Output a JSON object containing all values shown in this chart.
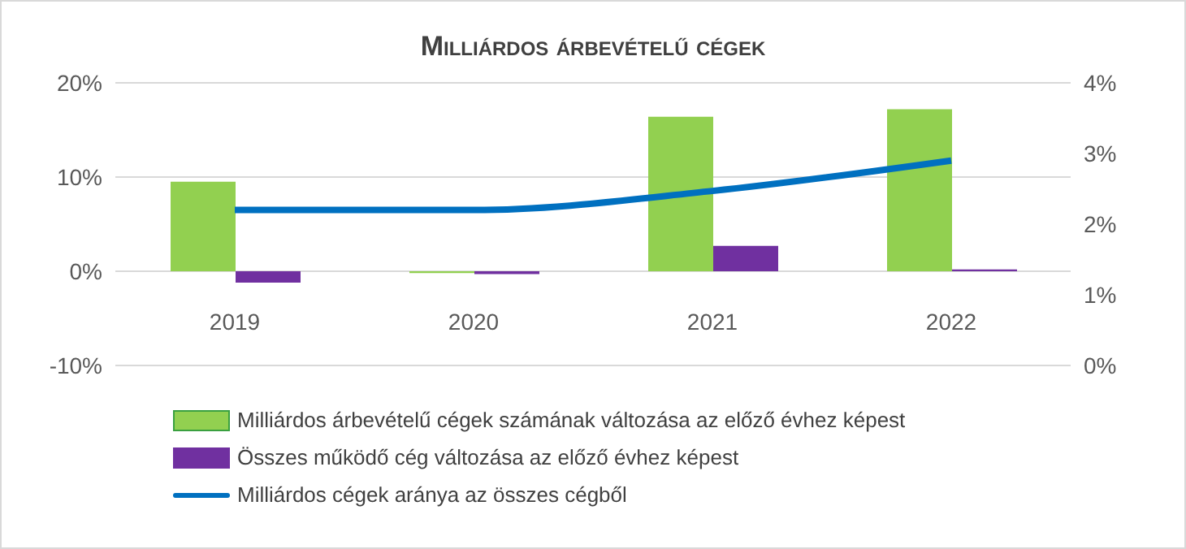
{
  "chart_data": {
    "type": "bar",
    "title": "Milliárdos árbevételű cégek",
    "categories": [
      "2019",
      "2020",
      "2021",
      "2022"
    ],
    "series": [
      {
        "name": "Milliárdos árbevételű cégek számának változása az előző évhez képest",
        "color": "#92d050",
        "values": [
          9.5,
          -0.2,
          16.4,
          17.2
        ]
      },
      {
        "name": "Összes működő cég változása az előző évhez képest",
        "color": "#7030a0",
        "values": [
          -1.2,
          -0.3,
          2.7,
          0.2
        ]
      },
      {
        "name": "Milliárdos cégek aránya az összes cégből",
        "type": "line",
        "axis": "y2",
        "color": "#0070c0",
        "values": [
          2.2,
          2.2,
          2.47,
          2.9
        ]
      }
    ],
    "ylim": [
      -10,
      20
    ],
    "yticks": [
      {
        "value": -10,
        "label": "-10%"
      },
      {
        "value": 0,
        "label": "0%"
      },
      {
        "value": 10,
        "label": "10%"
      },
      {
        "value": 20,
        "label": "20%"
      }
    ],
    "y2lim": [
      0,
      4
    ],
    "y2ticks": [
      {
        "value": 0,
        "label": "0%"
      },
      {
        "value": 1,
        "label": "1%"
      },
      {
        "value": 2,
        "label": "2%"
      },
      {
        "value": 3,
        "label": "3%"
      },
      {
        "value": 4,
        "label": "4%"
      }
    ],
    "grid": "y",
    "legend": "bottom",
    "marker": "none",
    "line_style": "solid"
  }
}
